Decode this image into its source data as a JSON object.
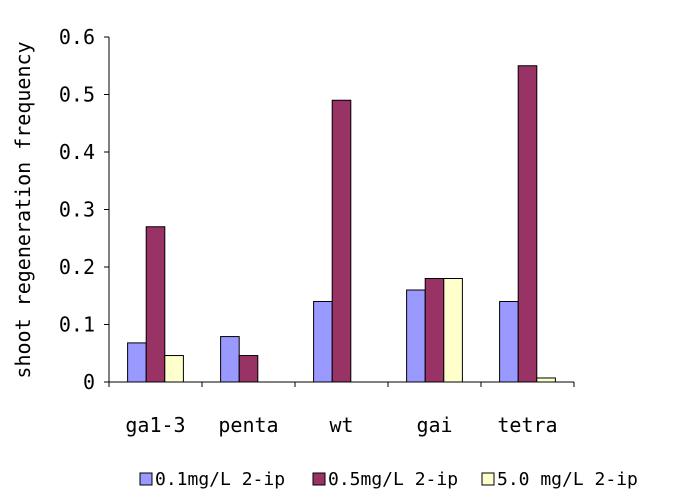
{
  "chart_data": {
    "type": "bar",
    "title": "",
    "xlabel": "",
    "ylabel": "shoot regeneration frequency",
    "ylim": [
      0,
      0.6
    ],
    "yticks": [
      "0",
      "0.1",
      "0.2",
      "0.3",
      "0.4",
      "0.5",
      "0.6"
    ],
    "categories": [
      "ga1-3",
      "penta",
      "wt",
      "gai",
      "tetra"
    ],
    "series": [
      {
        "name": "0.1mg/L 2-ip",
        "color": "#9999ff",
        "values": [
          0.068,
          0.079,
          0.14,
          0.16,
          0.14
        ]
      },
      {
        "name": "0.5mg/L 2-ip",
        "color": "#993366",
        "values": [
          0.27,
          0.046,
          0.49,
          0.18,
          0.55
        ]
      },
      {
        "name": "5.0 mg/L 2-ip",
        "color": "#ffffcc",
        "values": [
          0.046,
          0,
          0,
          0.18,
          0.007
        ]
      }
    ],
    "grid": false,
    "legend_position": "bottom"
  }
}
